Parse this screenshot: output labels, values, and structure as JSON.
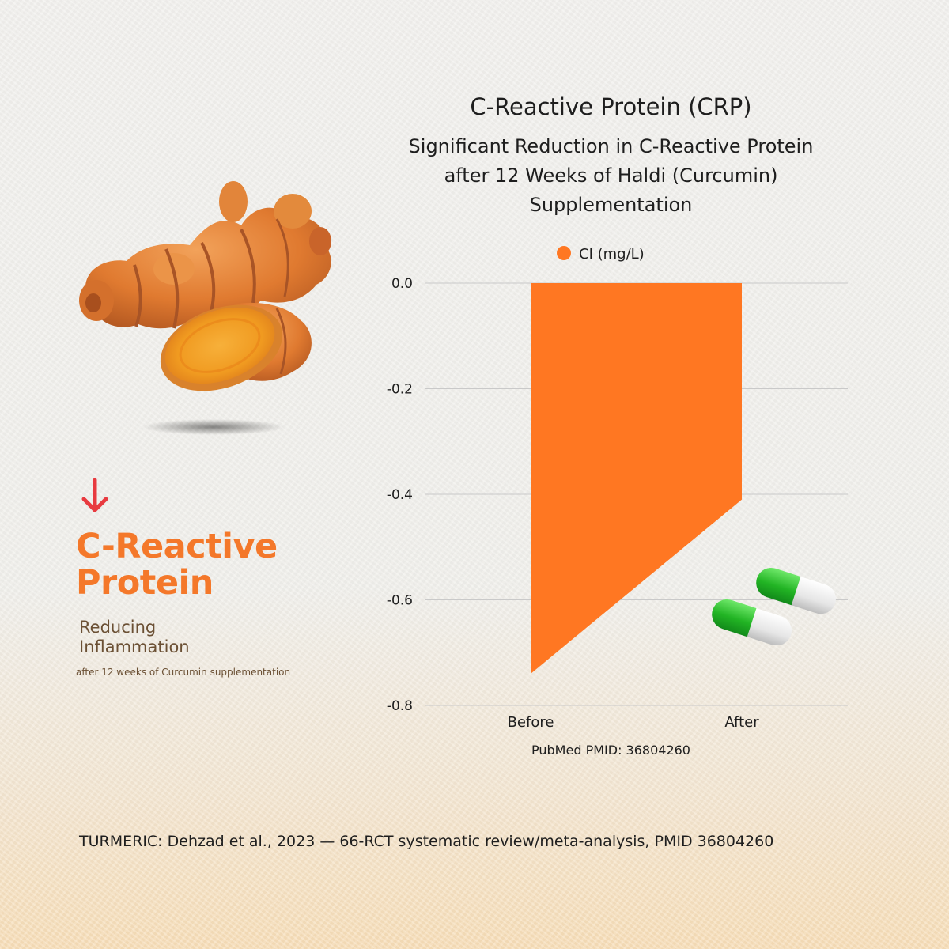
{
  "left_panel": {
    "headline_line1": "C-Reactive",
    "headline_line2": "Protein",
    "subheading_line1": "Reducing",
    "subheading_line2": "Inflammation",
    "caption": "after 12 weeks of Curcumin supplementation",
    "arrow_icon": "arrow-down-icon",
    "arrow_color": "#e83a3f",
    "accent_color": "#f4782a"
  },
  "chart_header": {
    "title": "C-Reactive Protein (CRP)",
    "subtitle_line1": "Significant Reduction in C-Reactive Protein",
    "subtitle_line2": "after 12 Weeks of Haldi (Curcumin)",
    "subtitle_line3": "Supplementation"
  },
  "chart_data": {
    "type": "area",
    "categories": [
      "Before",
      "After"
    ],
    "series": [
      {
        "name": "CI (mg/L)",
        "values": [
          -0.74,
          -0.41
        ],
        "color": "#ff7722"
      }
    ],
    "ylim": [
      -0.8,
      0.0
    ],
    "yticks": [
      0.0,
      -0.2,
      -0.4,
      -0.6,
      -0.8
    ],
    "ytick_labels": [
      "0.0",
      "-0.2",
      "-0.4",
      "-0.6",
      "-0.8"
    ],
    "grid": true,
    "legend_position": "top-center"
  },
  "source_note": "PubMed PMID: 36804260",
  "footer_citation": "TURMERIC: Dehzad et al., 2023 — 66-RCT systematic review/meta-analysis, PMID 36804260",
  "illustrations": [
    "turmeric-root-illustration",
    "capsule-pills-illustration"
  ]
}
